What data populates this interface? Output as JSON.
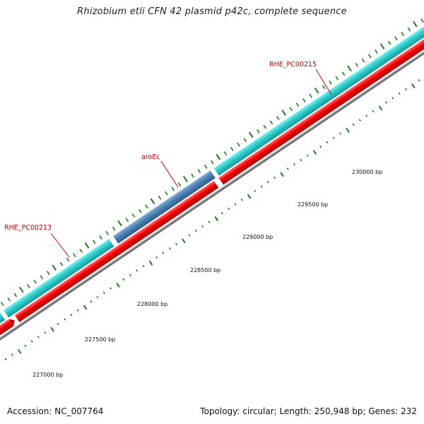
{
  "title": "Rhizobium etli CFN 42 plasmid p42c, complete sequence",
  "footer": {
    "accession": "Accession: NC_007764",
    "stats": "Topology: circular; Length: 250,948 bp; Genes: 232"
  },
  "colors": {
    "forward_gene": "#2ec8c8",
    "highlight_gene": "#4a7faf",
    "reverse_gene": "#ee0000",
    "backbone": "#808080",
    "tick": "#1f7a1f",
    "label": "#cc0000"
  },
  "tick_labels": [
    "227000 bp",
    "227500 bp",
    "228000 bp",
    "228500 bp",
    "229000 bp",
    "229500 bp",
    "230000 bp"
  ],
  "gene_labels": [
    "RHE_PC00213",
    "aroEc",
    "RHE_PC00215"
  ]
}
